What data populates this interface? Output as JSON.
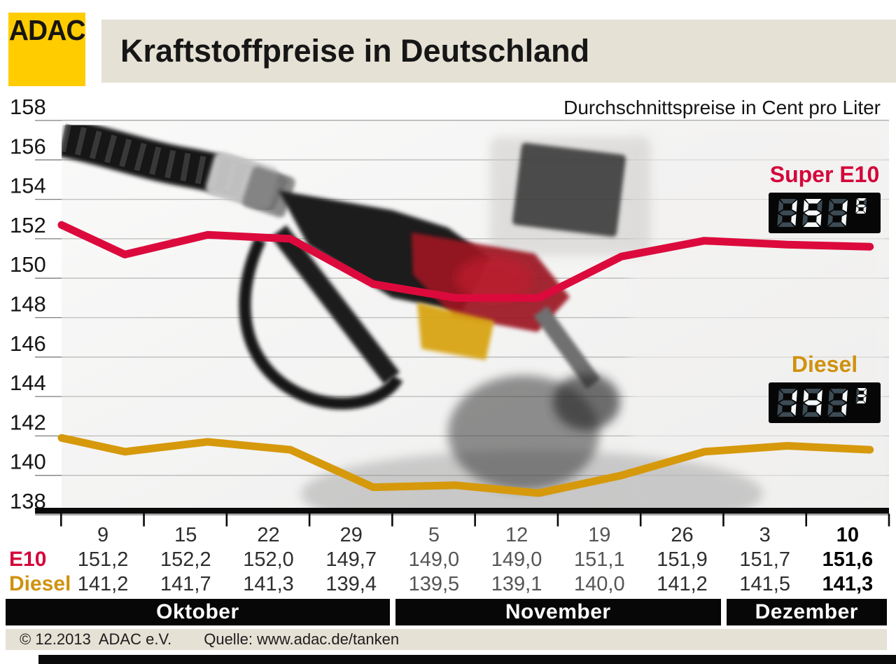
{
  "header": {
    "logo_text": "ADAC",
    "title": "Kraftstoffpreise in Deutschland"
  },
  "subtitle": "Durchschnittspreise in Cent pro Liter",
  "legend": {
    "e10_label": "Super E10",
    "diesel_label": "Diesel"
  },
  "displays": {
    "e10": {
      "digits": "151",
      "superscript": "6"
    },
    "diesel": {
      "digits": "141",
      "superscript": "3"
    }
  },
  "chart_data": {
    "type": "line",
    "title": "Kraftstoffpreise in Deutschland",
    "subtitle": "Durchschnittspreise in Cent pro Liter",
    "ylabel": "Cent pro Liter",
    "ylim": [
      138,
      158
    ],
    "yticks": [
      158,
      156,
      154,
      152,
      150,
      148,
      146,
      144,
      142,
      140,
      138
    ],
    "grid": true,
    "x_categories": [
      "9",
      "15",
      "22",
      "29",
      "5",
      "12",
      "19",
      "26",
      "3",
      "10"
    ],
    "month_groups": [
      {
        "label": "Oktober",
        "columns": 4
      },
      {
        "label": "November",
        "columns": 4
      },
      {
        "label": "Dezember",
        "columns": 2
      }
    ],
    "series": [
      {
        "name": "Super E10",
        "color": "#dc0a3c",
        "values": [
          151.2,
          152.2,
          152.0,
          149.7,
          149.0,
          149.0,
          151.1,
          151.9,
          151.7,
          151.6
        ],
        "left_edge_value": 152.7
      },
      {
        "name": "Diesel",
        "color": "#d6990b",
        "values": [
          141.2,
          141.7,
          141.3,
          139.4,
          139.5,
          139.1,
          140.0,
          141.2,
          141.5,
          141.3
        ],
        "left_edge_value": 141.9
      }
    ]
  },
  "table": {
    "e10_row_label": "E10",
    "diesel_row_label": "Diesel",
    "columns": [
      {
        "date": "9",
        "e10": "151,2",
        "diesel": "141,2",
        "muted": false,
        "bold": false
      },
      {
        "date": "15",
        "e10": "152,2",
        "diesel": "141,7",
        "muted": false,
        "bold": false
      },
      {
        "date": "22",
        "e10": "152,0",
        "diesel": "141,3",
        "muted": false,
        "bold": false
      },
      {
        "date": "29",
        "e10": "149,7",
        "diesel": "139,4",
        "muted": false,
        "bold": false
      },
      {
        "date": "5",
        "e10": "149,0",
        "diesel": "139,5",
        "muted": true,
        "bold": false
      },
      {
        "date": "12",
        "e10": "149,0",
        "diesel": "139,1",
        "muted": true,
        "bold": false
      },
      {
        "date": "19",
        "e10": "151,1",
        "diesel": "140,0",
        "muted": true,
        "bold": false
      },
      {
        "date": "26",
        "e10": "151,9",
        "diesel": "141,2",
        "muted": false,
        "bold": false
      },
      {
        "date": "3",
        "e10": "151,7",
        "diesel": "141,5",
        "muted": false,
        "bold": false
      },
      {
        "date": "10",
        "e10": "151,6",
        "diesel": "141,3",
        "muted": false,
        "bold": true
      }
    ]
  },
  "footer": {
    "copyright": "© 12.2013  ADAC e.V.",
    "source": "Quelle: www.adac.de/tanken"
  },
  "colors": {
    "adac_yellow": "#ffcc00",
    "e10_red": "#dc0a3c",
    "diesel_gold": "#d6990b",
    "beige": "#e6e1d5",
    "bar_black": "#080808",
    "display_ghost": "#3d4b55",
    "display_lit": "#f4f8f9"
  }
}
